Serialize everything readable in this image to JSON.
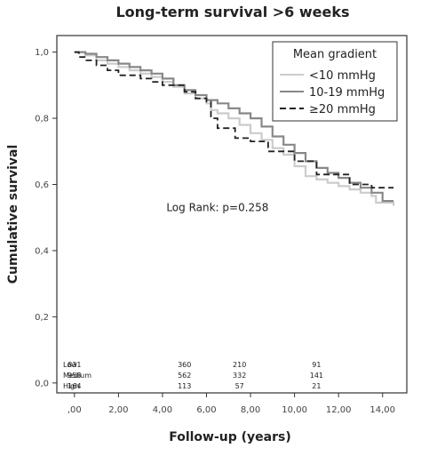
{
  "chart_data": {
    "type": "line",
    "title": "Long-term survival >6 weeks",
    "xlabel": "Follow-up (years)",
    "ylabel": "Cumulative survival",
    "xlim": [
      -0.8,
      15.1
    ],
    "ylim": [
      -0.03,
      1.05
    ],
    "x_ticks": [
      0,
      2,
      4,
      6,
      8,
      10,
      12,
      14
    ],
    "x_tick_labels": [
      ",00",
      "2,00",
      "4,00",
      "6,00",
      "8,00",
      "10,00",
      "12,00",
      "14,00"
    ],
    "y_ticks": [
      0,
      0.2,
      0.4,
      0.6,
      0.8,
      1.0
    ],
    "y_tick_labels": [
      "0,0",
      "0,2",
      "0,4",
      "0,6",
      "0,8",
      "1,0"
    ],
    "legend": {
      "title": "Mean gradient",
      "position": "top-right",
      "entries": [
        {
          "label": "<10 mmHg",
          "color": "#cccccc",
          "dash": "solid"
        },
        {
          "label": "10-19 mmHg",
          "color": "#888888",
          "dash": "solid"
        },
        {
          "label": "≥20 mmHg",
          "color": "#222222",
          "dash": "dashed"
        }
      ]
    },
    "annotation": {
      "text": "Log Rank: p=0.258",
      "x": 6.5,
      "y": 0.52
    },
    "series": [
      {
        "name": "<10 mmHg",
        "color": "#cccccc",
        "dash": "solid",
        "points": [
          [
            0,
            1.0
          ],
          [
            0.5,
            0.99
          ],
          [
            1,
            0.975
          ],
          [
            1.5,
            0.965
          ],
          [
            2,
            0.955
          ],
          [
            2.5,
            0.945
          ],
          [
            3,
            0.935
          ],
          [
            3.5,
            0.925
          ],
          [
            4,
            0.91
          ],
          [
            4.5,
            0.895
          ],
          [
            5,
            0.875
          ],
          [
            5.5,
            0.86
          ],
          [
            6,
            0.845
          ],
          [
            6.2,
            0.825
          ],
          [
            6.5,
            0.815
          ],
          [
            7,
            0.8
          ],
          [
            7.5,
            0.78
          ],
          [
            8,
            0.755
          ],
          [
            8.5,
            0.735
          ],
          [
            9,
            0.71
          ],
          [
            9.5,
            0.69
          ],
          [
            10,
            0.655
          ],
          [
            10.5,
            0.625
          ],
          [
            11,
            0.615
          ],
          [
            11.5,
            0.605
          ],
          [
            12,
            0.595
          ],
          [
            12.5,
            0.585
          ],
          [
            13,
            0.575
          ],
          [
            13.5,
            0.565
          ],
          [
            13.7,
            0.545
          ],
          [
            14.5,
            0.535
          ]
        ]
      },
      {
        "name": "10-19 mmHg",
        "color": "#888888",
        "dash": "solid",
        "points": [
          [
            0,
            1.0
          ],
          [
            0.5,
            0.995
          ],
          [
            1,
            0.985
          ],
          [
            1.5,
            0.975
          ],
          [
            2,
            0.965
          ],
          [
            2.5,
            0.955
          ],
          [
            3,
            0.945
          ],
          [
            3.5,
            0.935
          ],
          [
            4,
            0.92
          ],
          [
            4.5,
            0.9
          ],
          [
            5,
            0.885
          ],
          [
            5.5,
            0.87
          ],
          [
            6,
            0.855
          ],
          [
            6.5,
            0.845
          ],
          [
            7,
            0.83
          ],
          [
            7.5,
            0.815
          ],
          [
            8,
            0.8
          ],
          [
            8.5,
            0.775
          ],
          [
            9,
            0.745
          ],
          [
            9.5,
            0.72
          ],
          [
            10,
            0.695
          ],
          [
            10.5,
            0.67
          ],
          [
            11,
            0.65
          ],
          [
            11.5,
            0.635
          ],
          [
            12,
            0.62
          ],
          [
            12.5,
            0.605
          ],
          [
            13,
            0.59
          ],
          [
            13.5,
            0.575
          ],
          [
            14,
            0.55
          ],
          [
            14.5,
            0.55
          ]
        ]
      },
      {
        "name": "≥20 mmHg",
        "color": "#222222",
        "dash": "dashed",
        "points": [
          [
            0,
            1.0
          ],
          [
            0.2,
            0.985
          ],
          [
            0.5,
            0.975
          ],
          [
            1,
            0.96
          ],
          [
            1.5,
            0.945
          ],
          [
            2,
            0.93
          ],
          [
            2.5,
            0.93
          ],
          [
            3,
            0.92
          ],
          [
            3.5,
            0.91
          ],
          [
            4,
            0.9
          ],
          [
            4.5,
            0.9
          ],
          [
            5,
            0.88
          ],
          [
            5.5,
            0.86
          ],
          [
            6,
            0.85
          ],
          [
            6.2,
            0.8
          ],
          [
            6.5,
            0.77
          ],
          [
            7,
            0.77
          ],
          [
            7.3,
            0.74
          ],
          [
            8,
            0.73
          ],
          [
            8.5,
            0.73
          ],
          [
            8.8,
            0.7
          ],
          [
            9.5,
            0.7
          ],
          [
            10,
            0.67
          ],
          [
            10.5,
            0.67
          ],
          [
            11,
            0.63
          ],
          [
            12,
            0.63
          ],
          [
            12.5,
            0.6
          ],
          [
            13.3,
            0.6
          ],
          [
            13.5,
            0.59
          ],
          [
            14.5,
            0.59
          ]
        ]
      }
    ],
    "risk_table": {
      "timepoints": [
        0,
        5,
        7.5,
        11
      ],
      "rows": [
        {
          "label": "Low",
          "values": [
            "831",
            "360",
            "210",
            "91"
          ]
        },
        {
          "label": "Medium",
          "values": [
            "958",
            "562",
            "332",
            "141"
          ]
        },
        {
          "label": "High",
          "values": [
            "164",
            "113",
            "57",
            "21"
          ]
        }
      ]
    }
  }
}
